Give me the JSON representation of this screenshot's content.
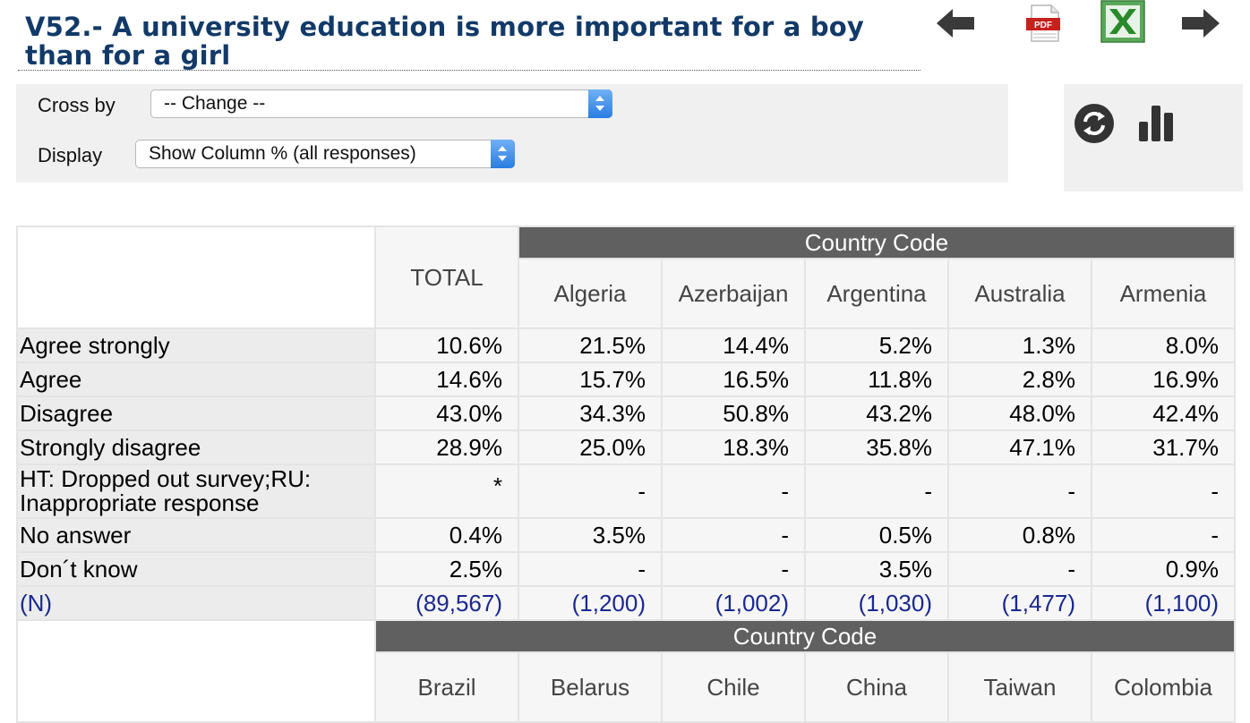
{
  "title": "V52.- A university education is more important for a boy than for a girl",
  "icons": {
    "back": "arrow-left-icon",
    "pdf": "pdf-icon",
    "excel": "excel-icon",
    "forward": "arrow-right-icon",
    "refresh": "refresh-icon",
    "chart": "bar-chart-icon"
  },
  "pdf_label": "PDF",
  "controls": {
    "cross_by_label": "Cross by",
    "cross_by_value": "-- Change --",
    "display_label": "Display",
    "display_value": "Show Column % (all responses)"
  },
  "table1": {
    "group_header": "Country Code",
    "total_header": "TOTAL",
    "columns": [
      "Algeria",
      "Azerbaijan",
      "Argentina",
      "Australia",
      "Armenia"
    ],
    "rows": [
      {
        "label": "Agree strongly",
        "values": [
          "10.6%",
          "21.5%",
          "14.4%",
          "5.2%",
          "1.3%",
          "8.0%"
        ]
      },
      {
        "label": "Agree",
        "values": [
          "14.6%",
          "15.7%",
          "16.5%",
          "11.8%",
          "2.8%",
          "16.9%"
        ]
      },
      {
        "label": "Disagree",
        "values": [
          "43.0%",
          "34.3%",
          "50.8%",
          "43.2%",
          "48.0%",
          "42.4%"
        ]
      },
      {
        "label": "Strongly disagree",
        "values": [
          "28.9%",
          "25.0%",
          "18.3%",
          "35.8%",
          "47.1%",
          "31.7%"
        ]
      },
      {
        "label": "HT: Dropped out survey;RU: Inappropriate response",
        "values": [
          "*",
          "-",
          "-",
          "-",
          "-",
          "-"
        ]
      },
      {
        "label": "No answer",
        "values": [
          "0.4%",
          "3.5%",
          "-",
          "0.5%",
          "0.8%",
          "-"
        ]
      },
      {
        "label": "Don´t know",
        "values": [
          "2.5%",
          "-",
          "-",
          "3.5%",
          "-",
          "0.9%"
        ]
      },
      {
        "label": "(N)",
        "values": [
          "(89,567)",
          "(1,200)",
          "(1,002)",
          "(1,030)",
          "(1,477)",
          "(1,100)"
        ]
      }
    ]
  },
  "table2": {
    "group_header": "Country Code",
    "columns": [
      "Brazil",
      "Belarus",
      "Chile",
      "China",
      "Taiwan",
      "Colombia"
    ]
  }
}
